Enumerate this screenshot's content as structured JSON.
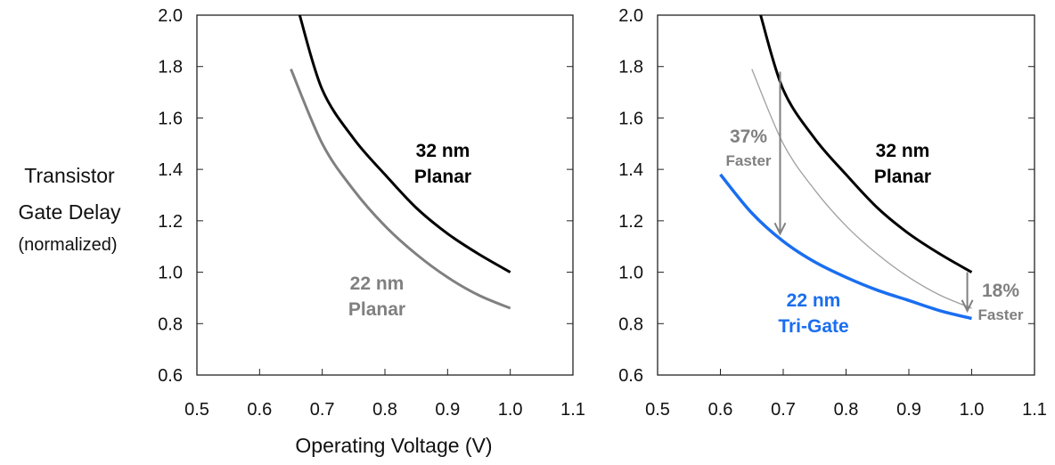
{
  "chart_data": [
    {
      "type": "line",
      "ylabel_lines": [
        "Transistor",
        "Gate Delay",
        "(normalized)"
      ],
      "xlabel": "Operating Voltage (V)",
      "xlim": [
        0.5,
        1.1
      ],
      "ylim": [
        0.6,
        2.0
      ],
      "xticks": [
        "0.5",
        "0.6",
        "0.7",
        "0.8",
        "0.9",
        "1.0",
        "1.1"
      ],
      "yticks": [
        "0.6",
        "0.8",
        "1.0",
        "1.2",
        "1.4",
        "1.6",
        "1.8",
        "2.0"
      ],
      "grid": false,
      "series": [
        {
          "name": "32 nm Planar",
          "label_lines": [
            "32 nm",
            "Planar"
          ],
          "color": "#000000",
          "x": [
            0.664,
            0.7,
            0.75,
            0.8,
            0.85,
            0.9,
            0.95,
            1.0
          ],
          "y": [
            2.0,
            1.71,
            1.52,
            1.38,
            1.25,
            1.15,
            1.07,
            1.0
          ]
        },
        {
          "name": "22 nm Planar",
          "label_lines": [
            "22 nm",
            "Planar"
          ],
          "color": "#808080",
          "x": [
            0.65,
            0.7,
            0.75,
            0.8,
            0.85,
            0.9,
            0.95,
            1.0
          ],
          "y": [
            1.79,
            1.5,
            1.32,
            1.18,
            1.07,
            0.98,
            0.91,
            0.86
          ]
        }
      ]
    },
    {
      "type": "line",
      "xlim": [
        0.5,
        1.1
      ],
      "ylim": [
        0.6,
        2.0
      ],
      "xticks": [
        "0.5",
        "0.6",
        "0.7",
        "0.8",
        "0.9",
        "1.0",
        "1.1"
      ],
      "yticks": [
        "0.6",
        "0.8",
        "1.0",
        "1.2",
        "1.4",
        "1.6",
        "1.8",
        "2.0"
      ],
      "grid": false,
      "series": [
        {
          "name": "32 nm Planar",
          "label_lines": [
            "32 nm",
            "Planar"
          ],
          "color": "#000000",
          "x": [
            0.664,
            0.7,
            0.75,
            0.8,
            0.85,
            0.9,
            0.95,
            1.0
          ],
          "y": [
            2.0,
            1.71,
            1.52,
            1.38,
            1.25,
            1.15,
            1.07,
            1.0
          ]
        },
        {
          "name": "22 nm Planar (reference)",
          "color": "#a0a0a0",
          "x": [
            0.65,
            0.7,
            0.75,
            0.8,
            0.85,
            0.9,
            0.95,
            1.0
          ],
          "y": [
            1.79,
            1.5,
            1.32,
            1.18,
            1.07,
            0.98,
            0.91,
            0.86
          ]
        },
        {
          "name": "22 nm Tri-Gate",
          "label_lines": [
            "22 nm",
            "Tri-Gate"
          ],
          "color": "#1a6ef0",
          "x": [
            0.6,
            0.65,
            0.7,
            0.75,
            0.8,
            0.85,
            0.9,
            0.95,
            1.0
          ],
          "y": [
            1.38,
            1.23,
            1.12,
            1.04,
            0.98,
            0.93,
            0.89,
            0.85,
            0.82
          ]
        }
      ],
      "annotations": [
        {
          "pct": "37%",
          "word": "Faster",
          "x": 0.695,
          "y_from": 1.78,
          "y_to": 1.15,
          "color": "#808080"
        },
        {
          "pct": "18%",
          "word": "Faster",
          "x": 0.993,
          "y_from": 1.0,
          "y_to": 0.85,
          "color": "#808080"
        }
      ]
    }
  ]
}
